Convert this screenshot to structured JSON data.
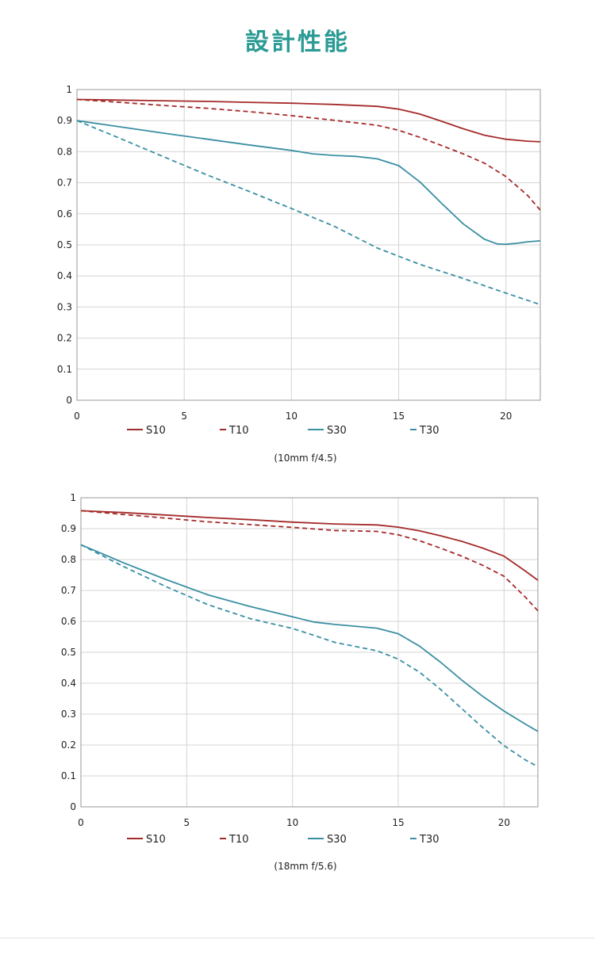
{
  "page": {
    "title": "設計性能"
  },
  "colors": {
    "title": "#2a9a94",
    "sagittal10": "#a52a2a",
    "sagittal30": "#3a8fa3",
    "grid": "#d4d4d4",
    "frame": "#9a9a9a",
    "text": "#222222"
  },
  "chart_data": [
    {
      "type": "line",
      "title": "",
      "caption": "(10mm f/4.5)",
      "xlim": [
        0,
        21.6
      ],
      "ylim": [
        0,
        1
      ],
      "xticks": [
        0,
        5,
        10,
        15,
        20
      ],
      "yticks": [
        0,
        0.1,
        0.2,
        0.3,
        0.4,
        0.5,
        0.6,
        0.7,
        0.8,
        0.9,
        1
      ],
      "ytick_labels": [
        "0",
        "0.1",
        "0.2",
        "0.3",
        "0.4",
        "0.5",
        "0.6",
        "0.7",
        "0.8",
        "0.9",
        "1"
      ],
      "grid": true,
      "legend": "bottom",
      "series": [
        {
          "name": "S10",
          "style": "solid",
          "color": "#a52a2a",
          "x": [
            0,
            2,
            4,
            6,
            8,
            10,
            12,
            14,
            15,
            16,
            17,
            18,
            19,
            20,
            21,
            21.6
          ],
          "y": [
            0.968,
            0.966,
            0.964,
            0.962,
            0.959,
            0.956,
            0.952,
            0.946,
            0.937,
            0.921,
            0.898,
            0.874,
            0.853,
            0.84,
            0.834,
            0.832
          ]
        },
        {
          "name": "T10",
          "style": "dashed",
          "color": "#a52a2a",
          "x": [
            0,
            2,
            4,
            6,
            8,
            10,
            12,
            14,
            15,
            16,
            17,
            18,
            19,
            20,
            21,
            21.6
          ],
          "y": [
            0.968,
            0.959,
            0.949,
            0.94,
            0.929,
            0.916,
            0.901,
            0.885,
            0.869,
            0.846,
            0.82,
            0.793,
            0.763,
            0.72,
            0.66,
            0.612
          ]
        },
        {
          "name": "S30",
          "style": "solid",
          "color": "#3a8fa3",
          "x": [
            0,
            2,
            4,
            6,
            8,
            10,
            11,
            12,
            13,
            14,
            15,
            16,
            17,
            18,
            19,
            19.6,
            20,
            20.5,
            21,
            21.6
          ],
          "y": [
            0.9,
            0.88,
            0.86,
            0.841,
            0.822,
            0.804,
            0.793,
            0.788,
            0.785,
            0.777,
            0.755,
            0.702,
            0.634,
            0.568,
            0.518,
            0.503,
            0.502,
            0.505,
            0.51,
            0.513
          ]
        },
        {
          "name": "T30",
          "style": "dashed",
          "color": "#3a8fa3",
          "x": [
            0,
            2,
            4,
            6,
            8,
            10,
            12,
            14,
            16,
            18,
            20,
            21.6
          ],
          "y": [
            0.9,
            0.843,
            0.785,
            0.727,
            0.673,
            0.617,
            0.56,
            0.49,
            0.437,
            0.392,
            0.345,
            0.308
          ]
        }
      ]
    },
    {
      "type": "line",
      "title": "",
      "caption": "(18mm f/5.6)",
      "xlim": [
        0,
        21.6
      ],
      "ylim": [
        0,
        1
      ],
      "xticks": [
        0,
        5,
        10,
        15,
        20
      ],
      "yticks": [
        0,
        0.1,
        0.2,
        0.3,
        0.4,
        0.5,
        0.6,
        0.7,
        0.8,
        0.9,
        1
      ],
      "ytick_labels": [
        "0",
        "0.1",
        "0.2",
        "0.3",
        "0.4",
        "0.5",
        "0.6",
        "0.7",
        "0.8",
        "0.9",
        "1"
      ],
      "grid": true,
      "legend": "bottom",
      "series": [
        {
          "name": "S10",
          "style": "solid",
          "color": "#a52a2a",
          "x": [
            0,
            2,
            4,
            6,
            8,
            10,
            12,
            14,
            15,
            16,
            17,
            18,
            19,
            20,
            21,
            21.6
          ],
          "y": [
            0.958,
            0.952,
            0.944,
            0.936,
            0.929,
            0.921,
            0.915,
            0.912,
            0.905,
            0.893,
            0.877,
            0.859,
            0.837,
            0.811,
            0.763,
            0.733
          ]
        },
        {
          "name": "T10",
          "style": "dashed",
          "color": "#a52a2a",
          "x": [
            0,
            2,
            4,
            6,
            8,
            10,
            12,
            14,
            15,
            16,
            17,
            18,
            19,
            20,
            21,
            21.6
          ],
          "y": [
            0.958,
            0.946,
            0.934,
            0.922,
            0.913,
            0.904,
            0.894,
            0.891,
            0.88,
            0.861,
            0.837,
            0.811,
            0.781,
            0.746,
            0.679,
            0.634
          ]
        },
        {
          "name": "S30",
          "style": "solid",
          "color": "#3a8fa3",
          "x": [
            0,
            2,
            4,
            6,
            8,
            10,
            11,
            12,
            14,
            15,
            16,
            17,
            18,
            19,
            20,
            21,
            21.6
          ],
          "y": [
            0.848,
            0.79,
            0.736,
            0.686,
            0.648,
            0.615,
            0.598,
            0.59,
            0.578,
            0.56,
            0.52,
            0.468,
            0.41,
            0.357,
            0.31,
            0.268,
            0.244
          ]
        },
        {
          "name": "T30",
          "style": "dashed",
          "color": "#3a8fa3",
          "x": [
            0,
            2,
            4,
            6,
            8,
            10,
            11,
            12,
            14,
            15,
            16,
            17,
            18,
            19,
            20,
            21,
            21.6
          ],
          "y": [
            0.848,
            0.778,
            0.713,
            0.654,
            0.609,
            0.577,
            0.555,
            0.532,
            0.505,
            0.478,
            0.436,
            0.38,
            0.318,
            0.256,
            0.198,
            0.152,
            0.13
          ]
        }
      ]
    }
  ]
}
